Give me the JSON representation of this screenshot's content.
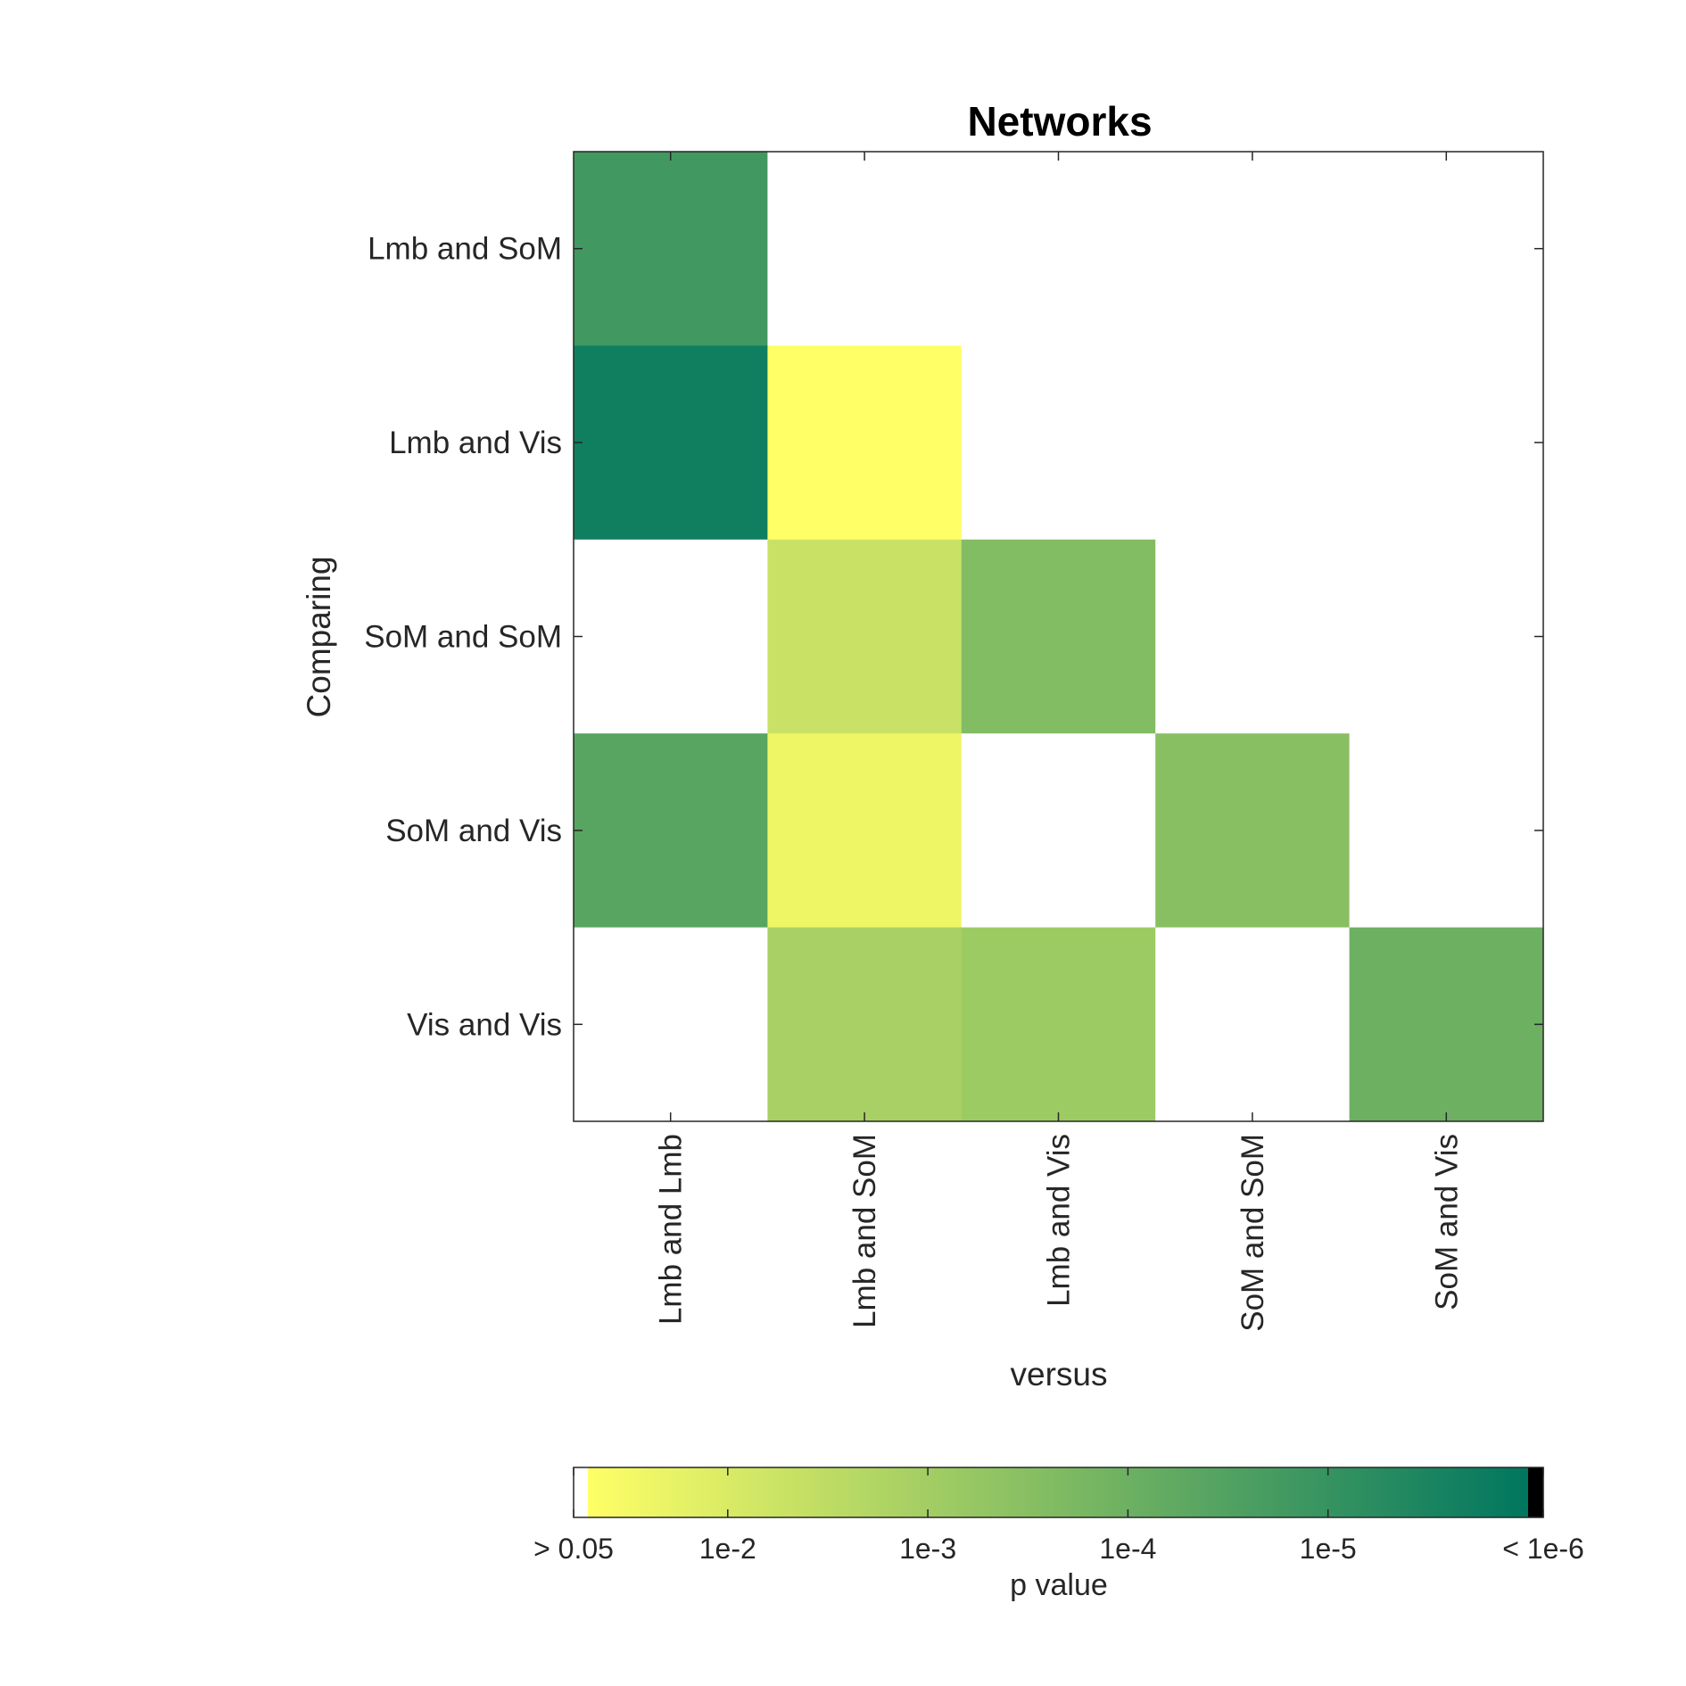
{
  "chart_data": {
    "type": "heatmap",
    "title": "Networks",
    "xlabel": "versus",
    "ylabel": "Comparing",
    "x_categories": [
      "Lmb and Lmb",
      "Lmb and SoM",
      "Lmb and Vis",
      "SoM and SoM",
      "SoM and Vis"
    ],
    "y_categories": [
      "Lmb and SoM",
      "Lmb and Vis",
      "SoM and SoM",
      "SoM and Vis",
      "Vis and Vis"
    ],
    "log10_p_values": [
      [
        -4.8,
        null,
        null,
        null,
        null
      ],
      [
        -5.7,
        -1.3,
        null,
        null,
        null
      ],
      [
        null,
        -2.3,
        -3.6,
        null,
        null
      ],
      [
        -4.4,
        -1.6,
        null,
        -3.5,
        null
      ],
      [
        null,
        -2.9,
        -3.1,
        null,
        -4.0
      ]
    ],
    "colorbar": {
      "label": "p value",
      "tick_labels": [
        "> 0.05",
        "1e-2",
        "1e-3",
        "1e-4",
        "1e-5",
        "< 1e-6"
      ],
      "tick_log10": [
        -1.301,
        -2,
        -3,
        -4,
        -5,
        -6
      ],
      "colors": [
        "#ffff66",
        "#00765f"
      ],
      "below_color": "#ffffff",
      "above_color": "#000000"
    },
    "empty_cell_color": "#ffffff"
  }
}
